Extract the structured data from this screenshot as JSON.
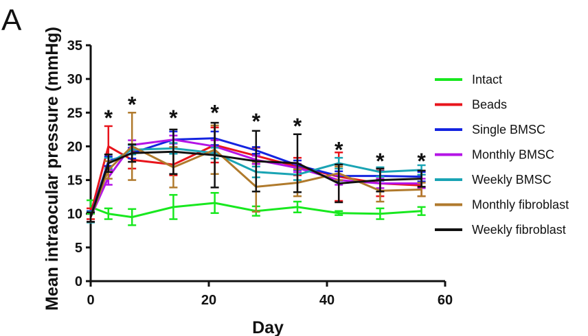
{
  "panel_label": "A",
  "chart_data": {
    "type": "line",
    "xlabel": "Day",
    "ylabel": "Mean intraocular pressure (mmHg)",
    "xlim": [
      0,
      60
    ],
    "ylim": [
      0,
      35
    ],
    "x_ticks": [
      "0",
      "20",
      "40",
      "60"
    ],
    "y_ticks": [
      "0",
      "5",
      "10",
      "15",
      "20",
      "25",
      "30",
      "35"
    ],
    "x": [
      0,
      3,
      7,
      14,
      21,
      28,
      35,
      42,
      49,
      56
    ],
    "legend_position": "right",
    "grid": false,
    "series": [
      {
        "name": "Intact",
        "color": "#18e81f",
        "values": [
          11,
          10,
          9.5,
          11,
          11.6,
          10.4,
          11,
          10.1,
          10,
          10.4
        ],
        "errors": [
          1.0,
          0.8,
          1.2,
          1.8,
          1.5,
          0.7,
          0.8,
          0.3,
          0.8,
          0.6
        ]
      },
      {
        "name": "Beads",
        "color": "#e8141c",
        "values": [
          10,
          20,
          18,
          17.3,
          20.2,
          18.6,
          17,
          15.5,
          14.5,
          14.2
        ],
        "errors": [
          0.8,
          3.0,
          1.3,
          1.6,
          2.6,
          1.2,
          1.3,
          3.6,
          1.9,
          1.6
        ]
      },
      {
        "name": "Single BMSC",
        "color": "#1424e0",
        "values": [
          9.6,
          17.8,
          19,
          21,
          21.2,
          19.4,
          17.2,
          15.6,
          15.6,
          15.5
        ],
        "errors": [
          0.8,
          0.7,
          0.8,
          1.2,
          1.0,
          0.5,
          0.7,
          0.7,
          0.7,
          0.7
        ]
      },
      {
        "name": "Monthly BMSC",
        "color": "#b414e6",
        "values": [
          9.5,
          15.4,
          20.2,
          21,
          20,
          18,
          16.8,
          15,
          14.5,
          14.5
        ],
        "errors": [
          0.7,
          1.1,
          0.7,
          0.6,
          0.9,
          0.6,
          0.6,
          0.7,
          0.7,
          0.7
        ]
      },
      {
        "name": "Weekly BMSC",
        "color": "#1aa4b4",
        "values": [
          9.5,
          17.5,
          19.5,
          19.7,
          19,
          16.2,
          15.8,
          17.5,
          16.2,
          16.5
        ],
        "errors": [
          0.8,
          0.8,
          0.7,
          0.8,
          0.8,
          0.8,
          0.8,
          0.8,
          0.7,
          0.7
        ]
      },
      {
        "name": "Monthly fibroblast",
        "color": "#b07a2c",
        "values": [
          9.5,
          16.5,
          20,
          16.9,
          19.5,
          14,
          14.6,
          16,
          13.4,
          13.6
        ],
        "errors": [
          0.7,
          1.3,
          5.0,
          3.0,
          3.6,
          3.7,
          2.0,
          1.0,
          1.6,
          1.0
        ]
      },
      {
        "name": "Weekly fibroblast",
        "color": "#111111",
        "values": [
          9.5,
          17.5,
          19,
          19.2,
          18.7,
          17.8,
          17.5,
          14.5,
          15,
          15.2
        ],
        "errors": [
          0.7,
          1.3,
          1.3,
          3.3,
          4.8,
          4.5,
          4.3,
          2.8,
          1.7,
          1.2
        ]
      }
    ],
    "annotations": [
      {
        "text": "*",
        "x": 3,
        "y": 24.5
      },
      {
        "text": "*",
        "x": 7,
        "y": 26.5
      },
      {
        "text": "*",
        "x": 14,
        "y": 24.5
      },
      {
        "text": "*",
        "x": 21,
        "y": 25.3
      },
      {
        "text": "*",
        "x": 28,
        "y": 24.0
      },
      {
        "text": "*",
        "x": 35,
        "y": 23.3
      },
      {
        "text": "*",
        "x": 42,
        "y": 19.8
      },
      {
        "text": "*",
        "x": 49,
        "y": 18.1
      },
      {
        "text": "*",
        "x": 56,
        "y": 18.1
      }
    ]
  }
}
